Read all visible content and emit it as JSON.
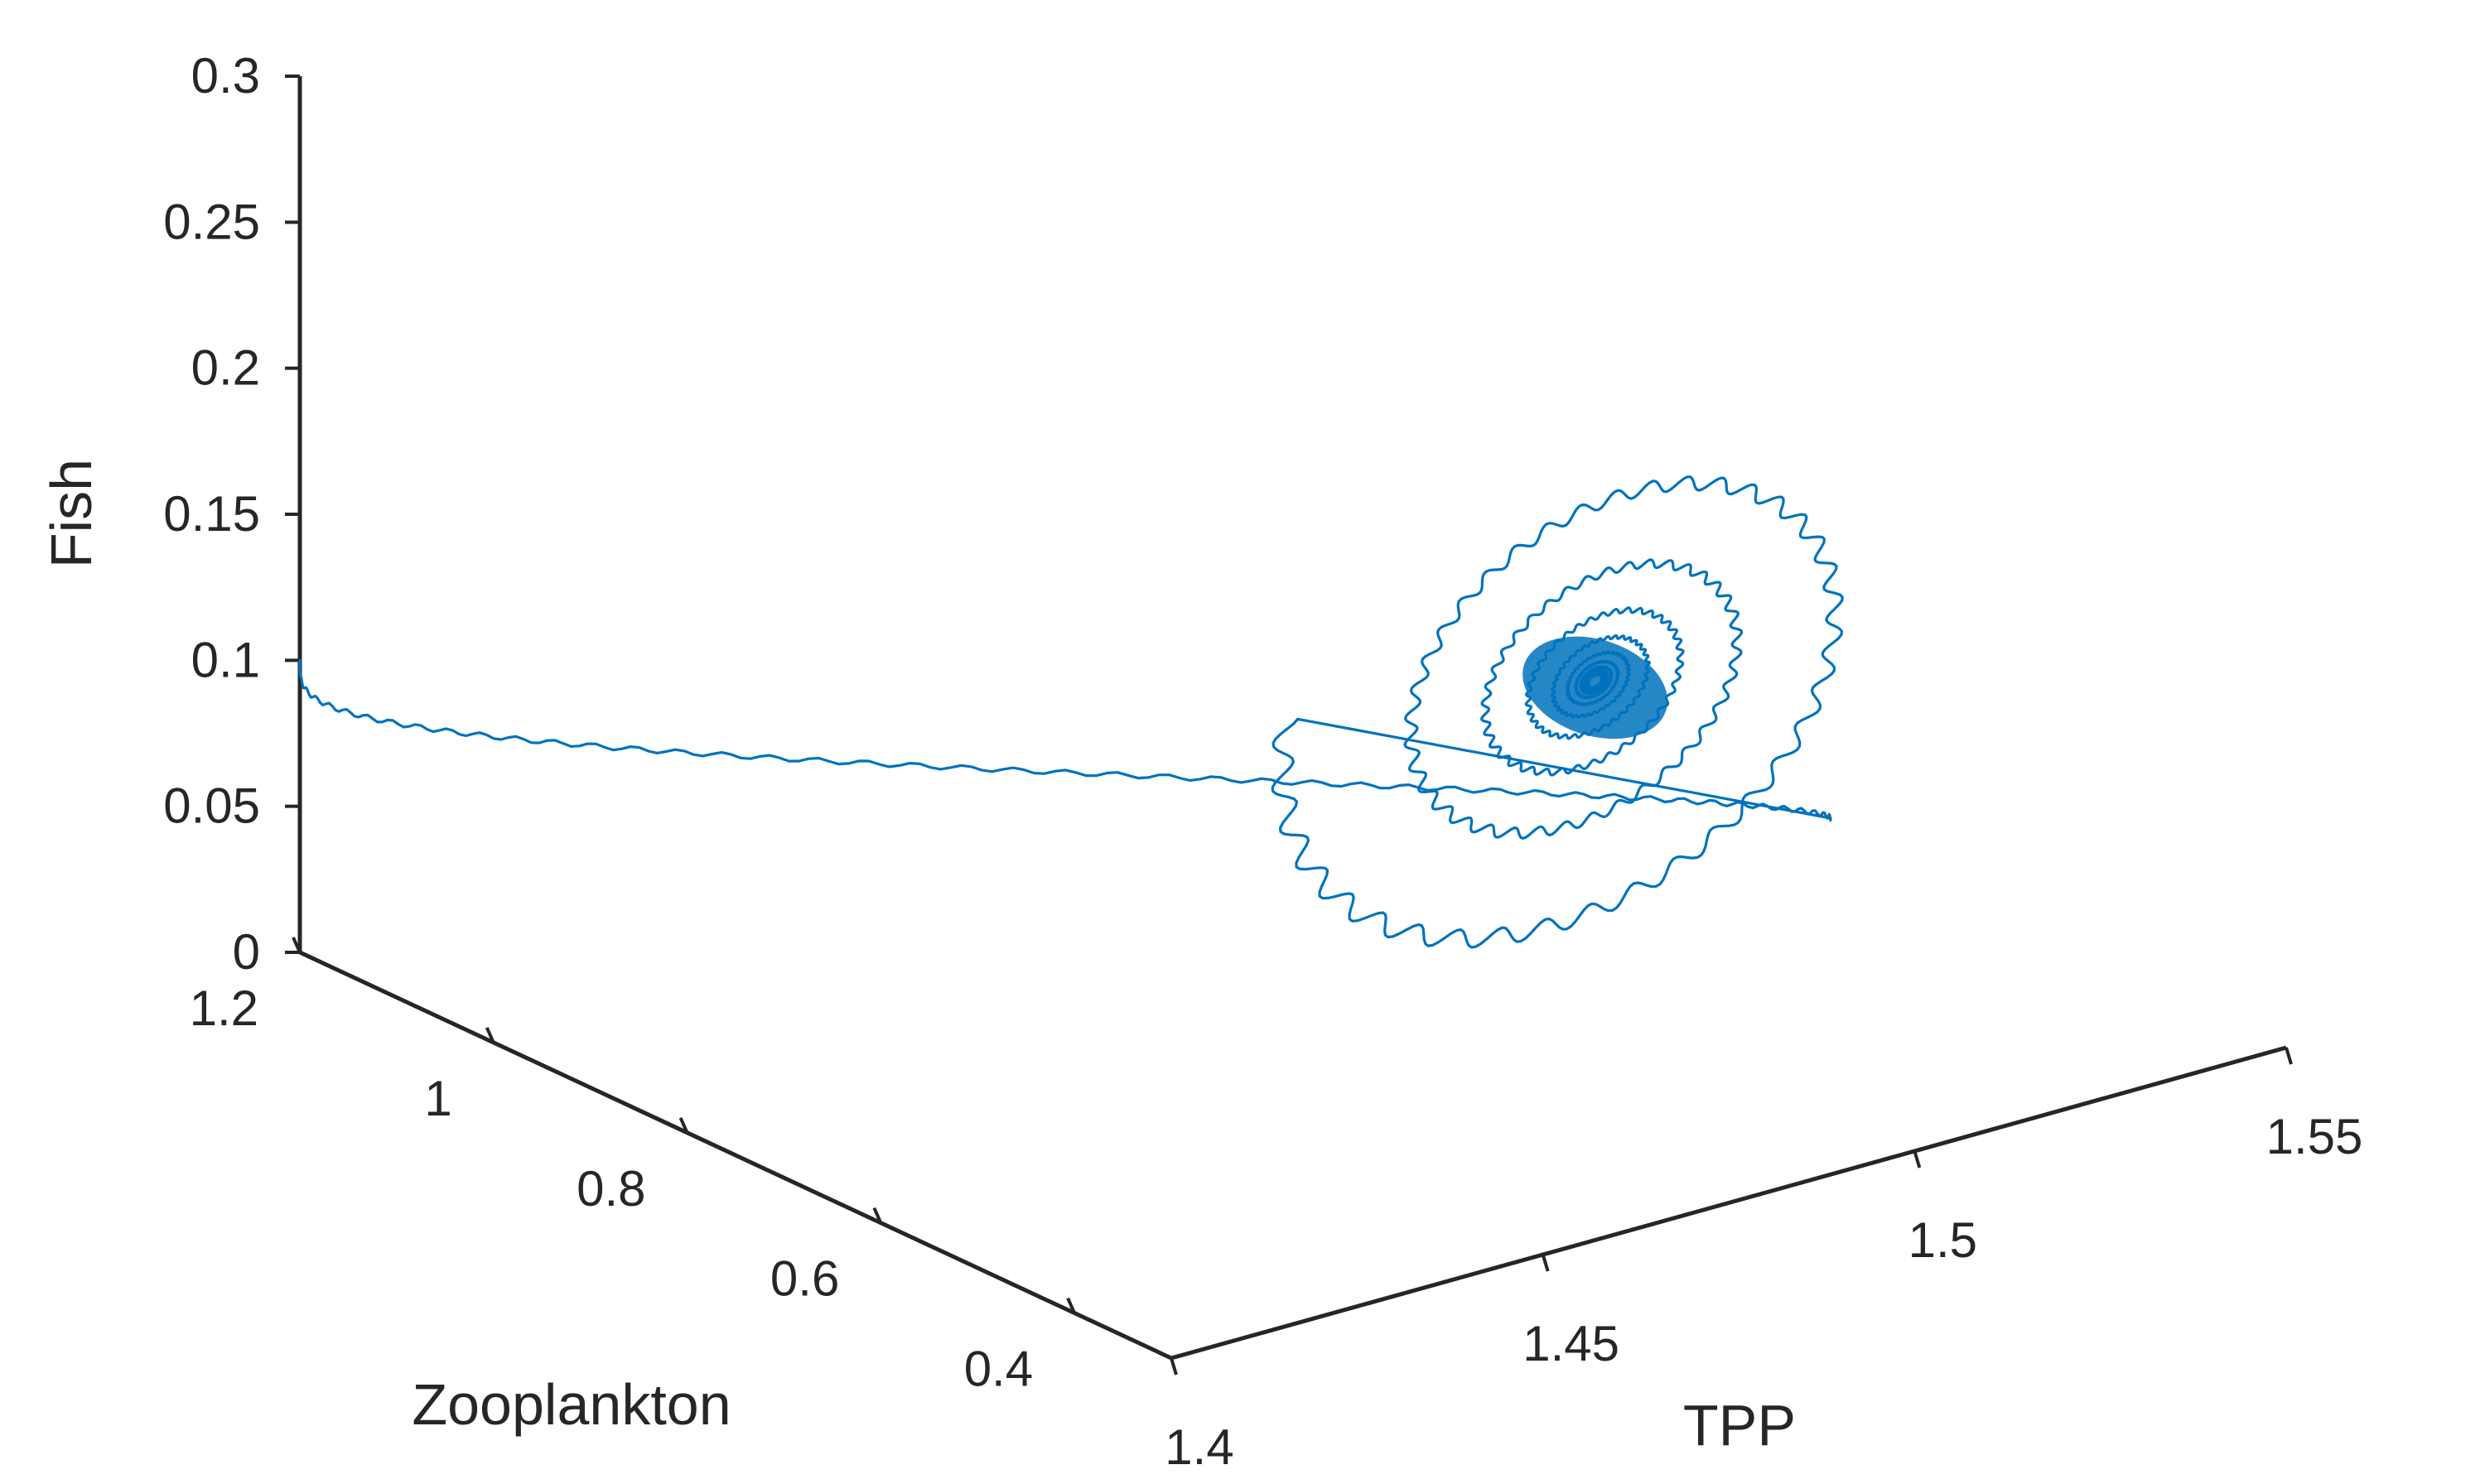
{
  "chart_data": {
    "type": "line3d",
    "title": "",
    "axes": {
      "x": {
        "label": "TPP",
        "range": [
          1.4,
          1.55
        ],
        "ticks": [
          "1.4",
          "1.45",
          "1.5",
          "1.55"
        ]
      },
      "y": {
        "label": "Zooplankton",
        "range": [
          0.3,
          1.2
        ],
        "ticks": [
          "0.4",
          "0.6",
          "0.8",
          "1",
          "1.2"
        ]
      },
      "z": {
        "label": "Fish",
        "range": [
          0,
          0.3
        ],
        "ticks": [
          "0",
          "0.05",
          "0.1",
          "0.15",
          "0.2",
          "0.25",
          "0.3"
        ]
      }
    },
    "grid": false,
    "legend": "none",
    "series": [
      {
        "color": "#0072BD",
        "description_points": [
          {
            "TPP": 1.4,
            "Zooplankton": 1.2,
            "Fish": 0.1
          },
          {
            "TPP": 1.533,
            "Zooplankton": 0.64,
            "Fish": 0.038
          },
          {
            "TPP": 1.48,
            "Zooplankton": 0.59,
            "Fish": 0.21
          },
          {
            "TPP": 1.515,
            "Zooplankton": 0.66,
            "Fish": 0.04
          },
          {
            "TPP": 1.5,
            "Zooplankton": 0.63,
            "Fish": 0.11
          }
        ]
      }
    ]
  }
}
